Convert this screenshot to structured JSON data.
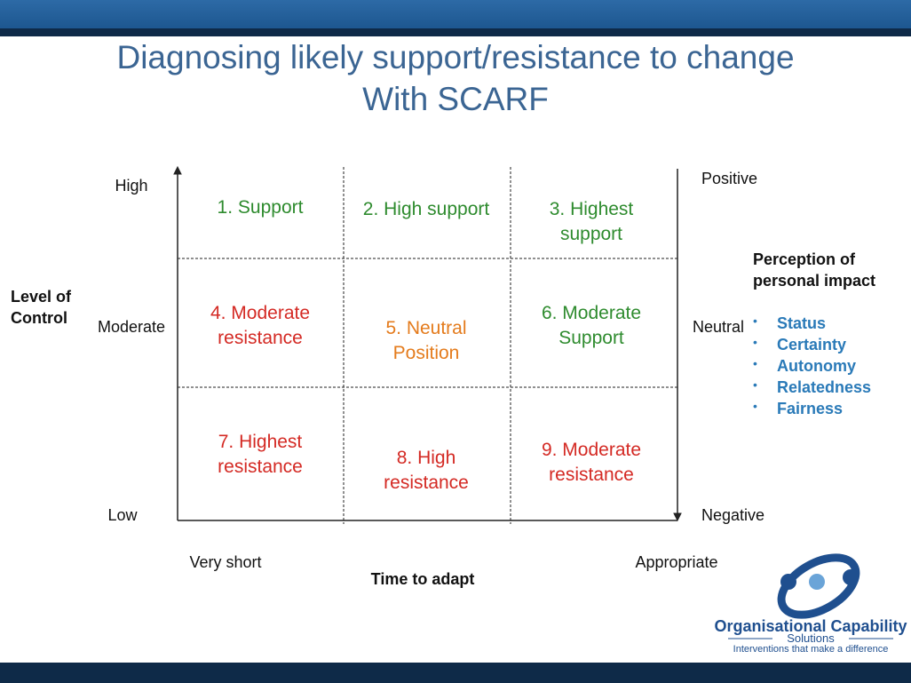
{
  "title": [
    "Diagnosing likely support/resistance to change",
    "With SCARF"
  ],
  "y_axis": {
    "label": [
      "Level of",
      "Control"
    ],
    "levels": [
      "High",
      "Moderate",
      "Low"
    ]
  },
  "x_axis": {
    "label": "Time to adapt",
    "levels": [
      "Very short",
      "Appropriate"
    ]
  },
  "impact_scale": [
    "Positive",
    "Neutral",
    "Negative"
  ],
  "cells": [
    {
      "lines": [
        "1. Support"
      ],
      "color": "#2e8b2e"
    },
    {
      "lines": [
        "2. High support"
      ],
      "color": "#2e8b2e"
    },
    {
      "lines": [
        "3. Highest",
        "support"
      ],
      "color": "#2e8b2e"
    },
    {
      "lines": [
        "4. Moderate",
        "resistance"
      ],
      "color": "#d42a24"
    },
    {
      "lines": [
        "5. Neutral",
        "Position"
      ],
      "color": "#e47b1c"
    },
    {
      "lines": [
        "6. Moderate",
        "Support"
      ],
      "color": "#2e8b2e"
    },
    {
      "lines": [
        "7. Highest",
        "resistance"
      ],
      "color": "#d42a24"
    },
    {
      "lines": [
        "8. High",
        "resistance"
      ],
      "color": "#d42a24"
    },
    {
      "lines": [
        "9. Moderate",
        "resistance"
      ],
      "color": "#d42a24"
    }
  ],
  "perception": {
    "heading": [
      "Perception of",
      "personal impact"
    ],
    "items": [
      "Status",
      "Certainty",
      "Autonomy",
      "Relatedness",
      "Fairness"
    ]
  },
  "logo": {
    "name": "Organisational Capability",
    "sub": "Solutions",
    "tagline": "Interventions that make a difference"
  }
}
